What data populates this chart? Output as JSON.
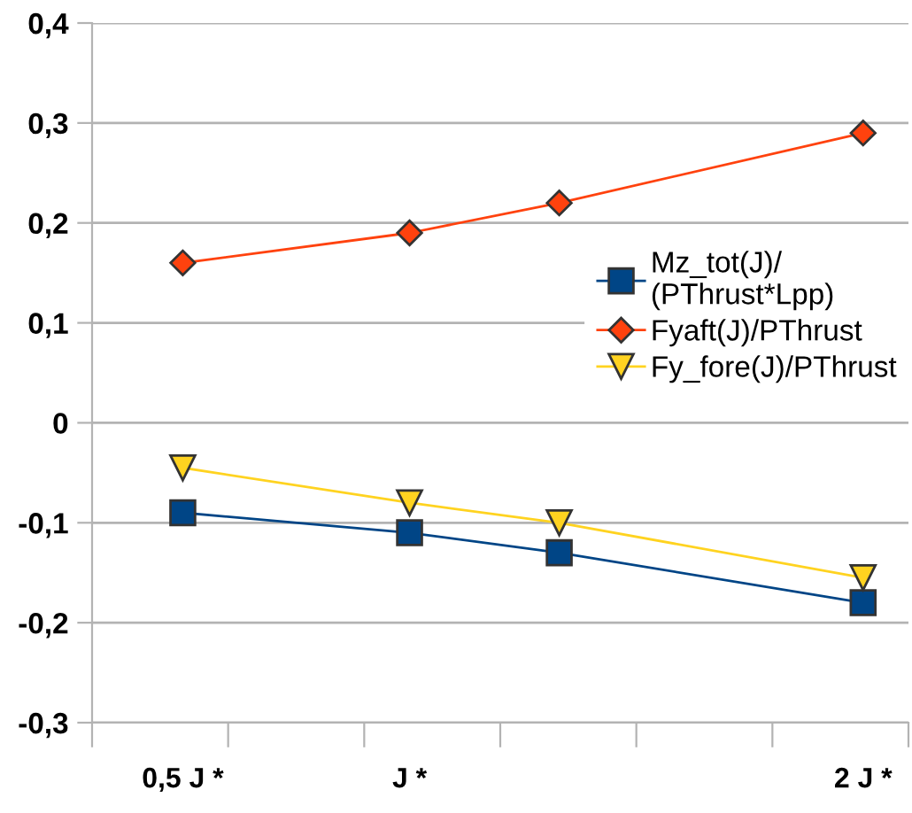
{
  "chart_data": {
    "type": "line",
    "x": [
      0.5,
      1,
      1.33,
      2
    ],
    "series": [
      {
        "name": "Mz_tot(J)/\n(PThrust*Lpp)",
        "color": "#004586",
        "values": [
          -0.09,
          -0.11,
          -0.13,
          -0.18
        ],
        "marker": "square"
      },
      {
        "name": "Fyaft(J)/PThrust",
        "color": "#ff420e",
        "values": [
          0.16,
          0.19,
          0.22,
          0.29
        ],
        "marker": "diamond"
      },
      {
        "name": "Fy_fore(J)/PThrust",
        "color": "#ffd320",
        "values": [
          -0.045,
          -0.08,
          -0.1,
          -0.155
        ],
        "marker": "triangle"
      }
    ],
    "xlim": [
      0.3,
      2.1
    ],
    "xticks": [
      {
        "value": 0.3,
        "label": null
      },
      {
        "value": 0.5,
        "label": "0,5 J *"
      },
      {
        "value": 0.6,
        "label": null
      },
      {
        "value": 0.9,
        "label": null
      },
      {
        "value": 1,
        "label": "J *"
      },
      {
        "value": 1.2,
        "label": null
      },
      {
        "value": 1.5,
        "label": null
      },
      {
        "value": 1.8,
        "label": null
      },
      {
        "value": 2,
        "label": "2 J *"
      },
      {
        "value": 2.1,
        "label": null
      }
    ],
    "ylim": [
      -0.3,
      0.4
    ],
    "yticks": [
      {
        "value": -0.3,
        "label": "-0,3"
      },
      {
        "value": -0.2,
        "label": "-0,2"
      },
      {
        "value": -0.1,
        "label": "-0,1"
      },
      {
        "value": 0,
        "label": "0"
      },
      {
        "value": 0.1,
        "label": "0,1"
      },
      {
        "value": 0.2,
        "label": "0,2"
      },
      {
        "value": 0.3,
        "label": "0,3"
      },
      {
        "value": 0.4,
        "label": "0,4"
      }
    ],
    "grid": "y",
    "legend": "right",
    "line_style": "solid"
  }
}
